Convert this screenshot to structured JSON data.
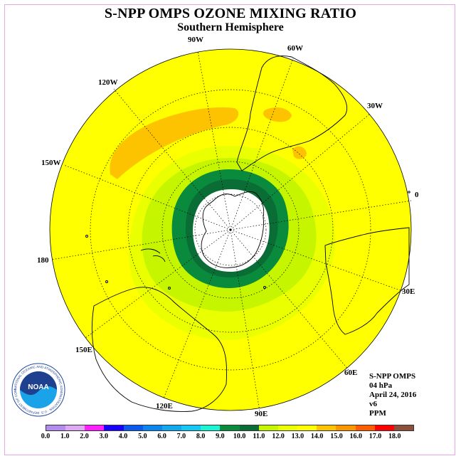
{
  "header": {
    "title": "S-NPP OMPS OZONE MIXING RATIO",
    "subtitle": "Southern Hemisphere"
  },
  "map": {
    "projection": "south-polar-stereographic",
    "colors": {
      "level_11_12": "#c5f600",
      "level_12_13": "#eaff00",
      "level_13_14": "#ffff00",
      "level_14_15": "#fdc300",
      "level_9_10": "#0a6d35",
      "level_8_9": "#0a8a3c",
      "polar_night": "#ffffff",
      "coast": "#000000"
    },
    "longitude_labels": [
      {
        "key": "lon_90w",
        "text": "90W"
      },
      {
        "key": "lon_60w",
        "text": "60W"
      },
      {
        "key": "lon_30w",
        "text": "30W"
      },
      {
        "key": "lon_0",
        "text": "0"
      },
      {
        "key": "lon_30e",
        "text": "30E"
      },
      {
        "key": "lon_60e",
        "text": "60E"
      },
      {
        "key": "lon_90e",
        "text": "90E"
      },
      {
        "key": "lon_120e",
        "text": "120E"
      },
      {
        "key": "lon_150e",
        "text": "150E"
      },
      {
        "key": "lon_180",
        "text": "180"
      },
      {
        "key": "lon_150w",
        "text": "150W"
      },
      {
        "key": "lon_120w",
        "text": "120W"
      }
    ]
  },
  "info": {
    "instrument": "S-NPP OMPS",
    "pressure": "04 hPa",
    "date": "April 24, 2016",
    "version": "v6",
    "units": "PPM"
  },
  "logo": {
    "text": "NOAA",
    "ring_text": "NATIONAL OCEANIC AND ATMOSPHERIC ADMINISTRATION · U.S. DEPARTMENT OF COMMERCE"
  },
  "colorbar": {
    "colors": [
      "#b38cf0",
      "#dca9f2",
      "#ff1fff",
      "#1a00ff",
      "#0a5af0",
      "#0a86f0",
      "#11a8ee",
      "#14c8f5",
      "#1bf5d4",
      "#0a8a3c",
      "#0a6d35",
      "#c5f600",
      "#eaff00",
      "#ffff00",
      "#fdc300",
      "#fb9600",
      "#ff5b00",
      "#ff0000",
      "#8b4f3b"
    ],
    "ticks": [
      "0.0",
      "1.0",
      "2.0",
      "3.0",
      "4.0",
      "5.0",
      "6.0",
      "7.0",
      "8.0",
      "9.0",
      "10.0",
      "11.0",
      "12.0",
      "13.0",
      "14.0",
      "15.0",
      "16.0",
      "17.0",
      "18.0"
    ]
  }
}
